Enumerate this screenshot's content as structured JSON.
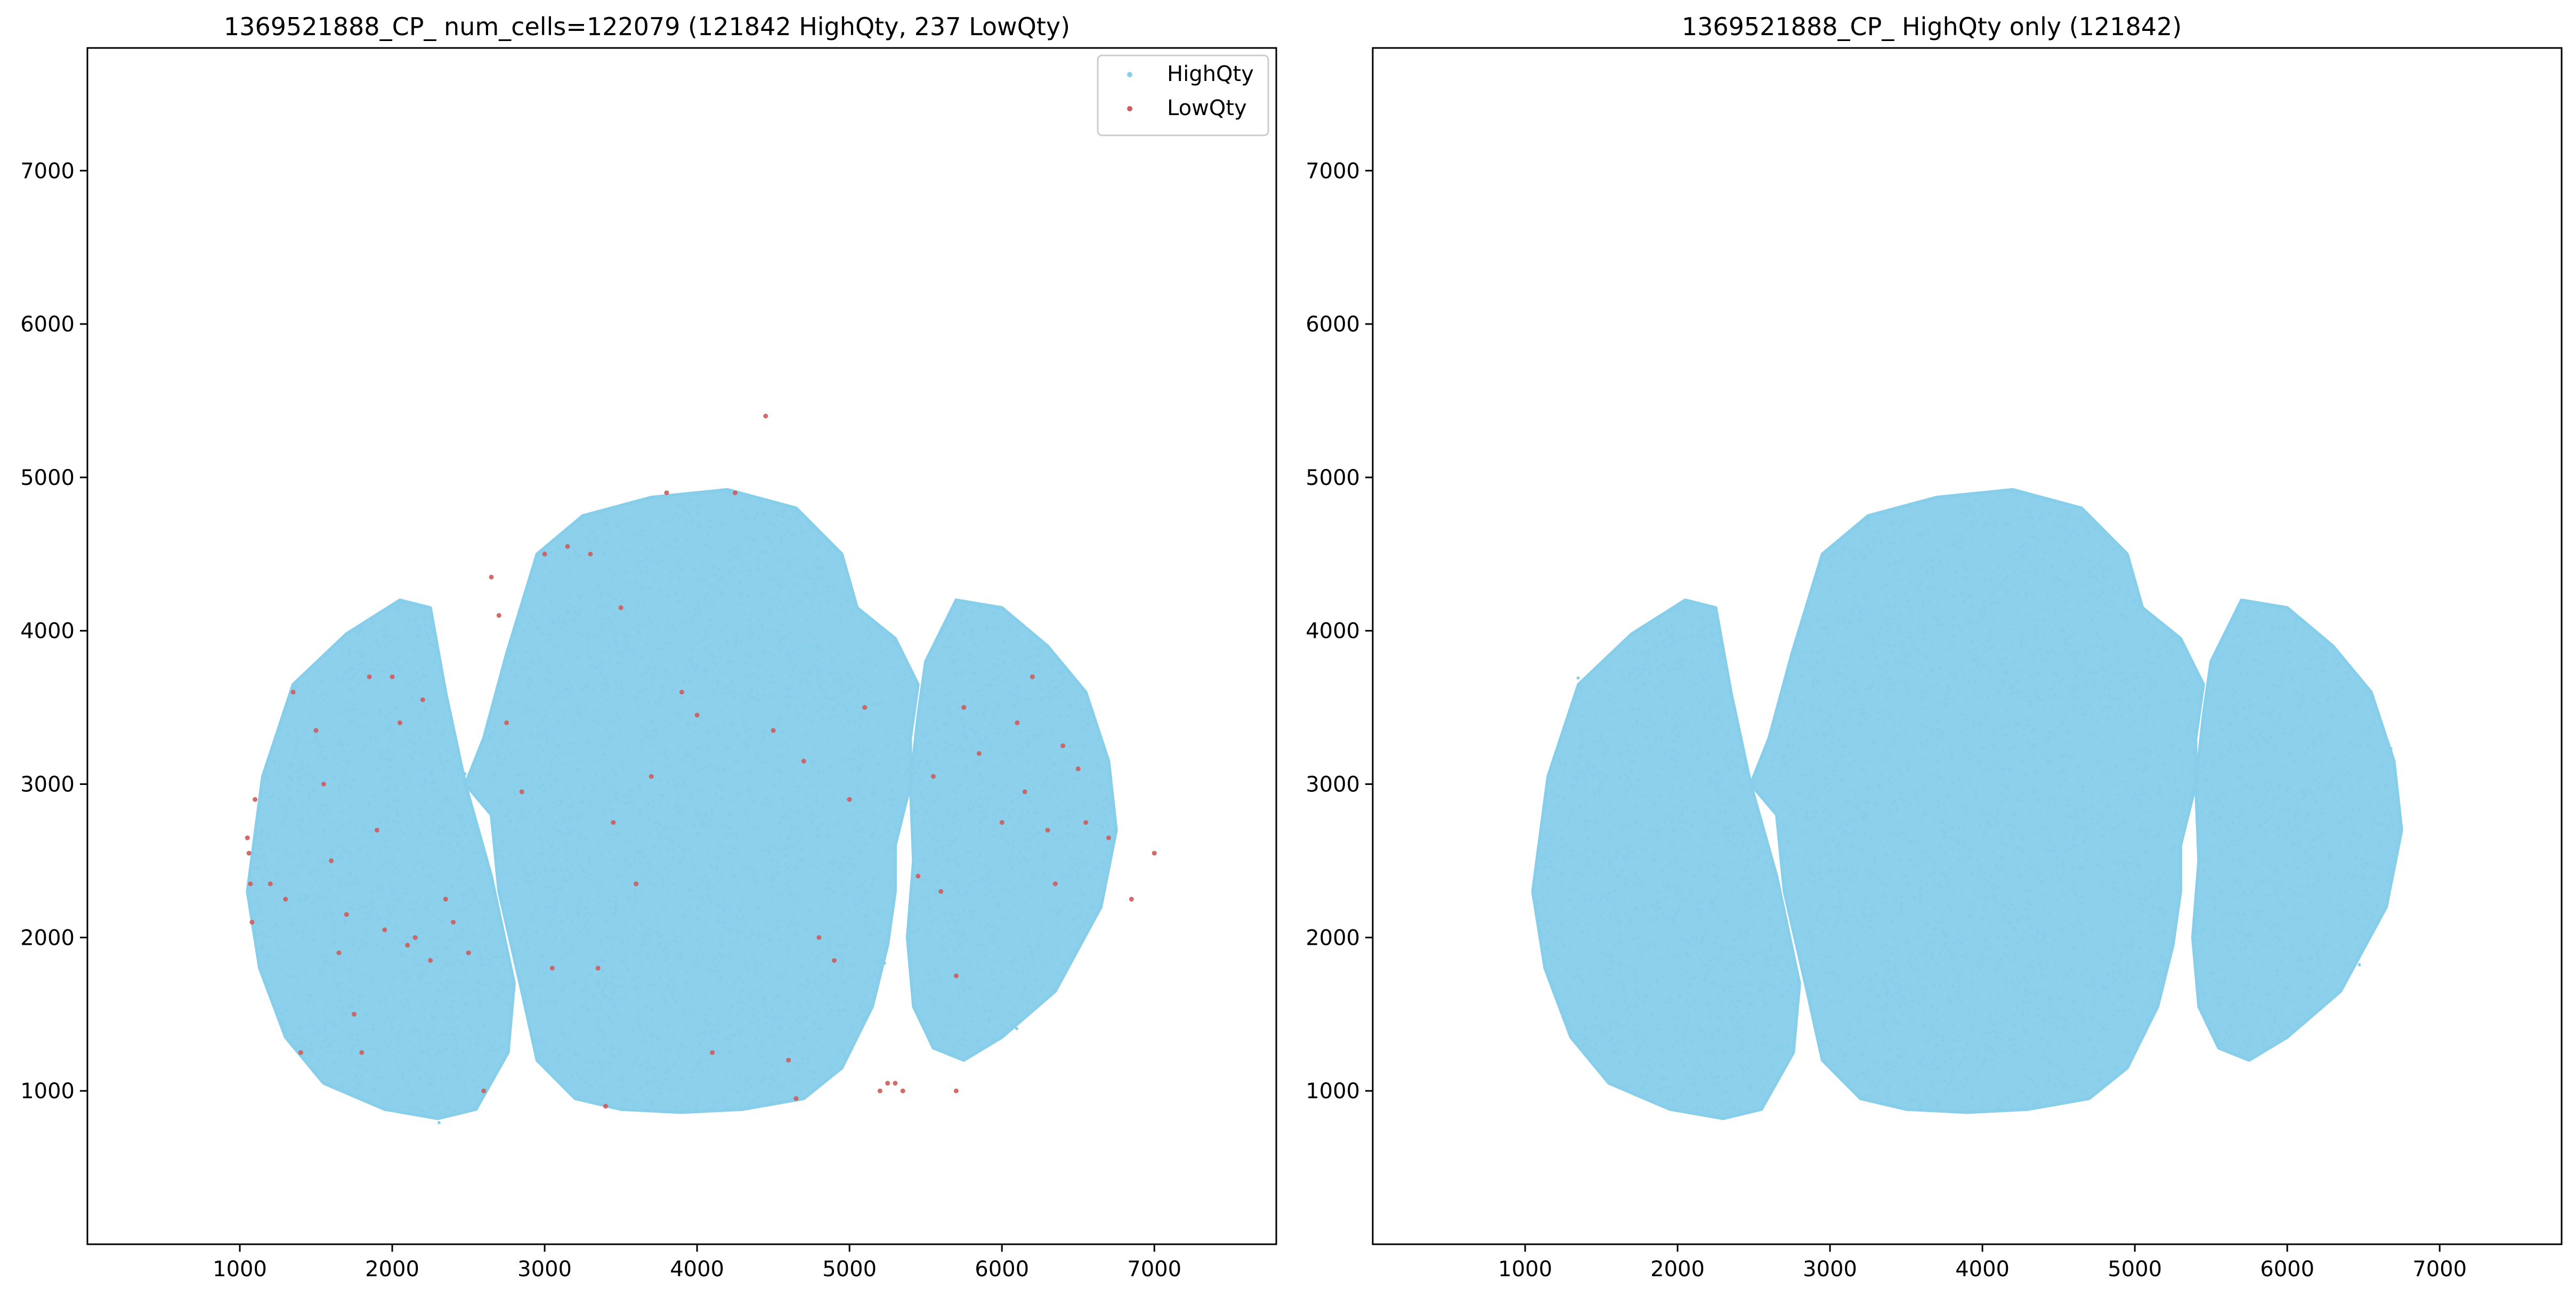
{
  "figure": {
    "background": "#ffffff",
    "colors": {
      "HighQty": "#87ceeb",
      "LowQty": "#cd5c5c"
    }
  },
  "chart_data": [
    {
      "type": "scatter",
      "title": "1369521888_CP_ num_cells=122079 (121842 HighQty, 237 LowQty)",
      "xlabel": "",
      "ylabel": "",
      "xlim": [
        0,
        7800
      ],
      "ylim": [
        0,
        7800
      ],
      "xticks": [
        "1000",
        "2000",
        "3000",
        "4000",
        "5000",
        "6000",
        "7000"
      ],
      "yticks": [
        "1000",
        "2000",
        "3000",
        "4000",
        "5000",
        "6000",
        "7000"
      ],
      "grid": false,
      "legend": {
        "position": "top-right",
        "entries": [
          "HighQty",
          "LowQty"
        ]
      },
      "series": [
        {
          "name": "HighQty",
          "color": "#87ceeb",
          "count": 121842,
          "shape": "dense tissue section with three lobes (left lobe, central lobe, right lobe)",
          "regions": {
            "left_lobe": [
              [
                1050,
                2300
              ],
              [
                1150,
                3050
              ],
              [
                1350,
                3650
              ],
              [
                1700,
                3980
              ],
              [
                2050,
                4200
              ],
              [
                2250,
                4150
              ],
              [
                2350,
                3600
              ],
              [
                2480,
                3000
              ],
              [
                2650,
                2400
              ],
              [
                2800,
                1700
              ],
              [
                2760,
                1250
              ],
              [
                2550,
                880
              ],
              [
                2300,
                820
              ],
              [
                1950,
                880
              ],
              [
                1550,
                1050
              ],
              [
                1300,
                1350
              ],
              [
                1130,
                1800
              ]
            ],
            "central_lobe": [
              [
                2600,
                3300
              ],
              [
                2750,
                3850
              ],
              [
                2950,
                4500
              ],
              [
                3250,
                4750
              ],
              [
                3700,
                4870
              ],
              [
                4200,
                4920
              ],
              [
                4650,
                4800
              ],
              [
                4950,
                4500
              ],
              [
                5050,
                4150
              ],
              [
                5300,
                3950
              ],
              [
                5450,
                3650
              ],
              [
                5400,
                3300
              ],
              [
                5400,
                3000
              ],
              [
                5300,
                2600
              ],
              [
                5300,
                2300
              ],
              [
                5250,
                1950
              ],
              [
                5150,
                1550
              ],
              [
                4950,
                1150
              ],
              [
                4700,
                950
              ],
              [
                4300,
                880
              ],
              [
                3900,
                860
              ],
              [
                3500,
                880
              ],
              [
                3200,
                950
              ],
              [
                2950,
                1200
              ],
              [
                2850,
                1650
              ],
              [
                2700,
                2300
              ],
              [
                2650,
                2800
              ],
              [
                2480,
                3000
              ]
            ],
            "right_lobe": [
              [
                5500,
                3800
              ],
              [
                5700,
                4200
              ],
              [
                6000,
                4150
              ],
              [
                6300,
                3900
              ],
              [
                6550,
                3600
              ],
              [
                6700,
                3150
              ],
              [
                6750,
                2700
              ],
              [
                6650,
                2200
              ],
              [
                6350,
                1650
              ],
              [
                6000,
                1350
              ],
              [
                5750,
                1200
              ],
              [
                5550,
                1280
              ],
              [
                5420,
                1550
              ],
              [
                5380,
                2000
              ],
              [
                5420,
                2500
              ],
              [
                5400,
                3000
              ],
              [
                5450,
                3450
              ]
            ]
          }
        },
        {
          "name": "LowQty",
          "color": "#cd5c5c",
          "count": 237,
          "points": [
            [
              1050,
              2650
            ],
            [
              1060,
              2550
            ],
            [
              1070,
              2350
            ],
            [
              1080,
              2100
            ],
            [
              1100,
              2900
            ],
            [
              1200,
              2350
            ],
            [
              1300,
              2250
            ],
            [
              1350,
              3600
            ],
            [
              1400,
              1250
            ],
            [
              1500,
              3350
            ],
            [
              1550,
              3000
            ],
            [
              1600,
              2500
            ],
            [
              1650,
              1900
            ],
            [
              1700,
              2150
            ],
            [
              1750,
              1500
            ],
            [
              1800,
              1250
            ],
            [
              1850,
              3700
            ],
            [
              1900,
              2700
            ],
            [
              1950,
              2050
            ],
            [
              2000,
              3700
            ],
            [
              2050,
              3400
            ],
            [
              2100,
              1950
            ],
            [
              2150,
              2000
            ],
            [
              2200,
              3550
            ],
            [
              2250,
              1850
            ],
            [
              2350,
              2250
            ],
            [
              2400,
              2100
            ],
            [
              2500,
              1900
            ],
            [
              2600,
              1000
            ],
            [
              2650,
              4350
            ],
            [
              2700,
              4100
            ],
            [
              2750,
              3400
            ],
            [
              2850,
              2950
            ],
            [
              3000,
              4500
            ],
            [
              3050,
              1800
            ],
            [
              3150,
              4550
            ],
            [
              3300,
              4500
            ],
            [
              3350,
              1800
            ],
            [
              3400,
              900
            ],
            [
              3450,
              2750
            ],
            [
              3500,
              4150
            ],
            [
              3600,
              2350
            ],
            [
              3700,
              3050
            ],
            [
              3800,
              4900
            ],
            [
              3900,
              3600
            ],
            [
              4000,
              3450
            ],
            [
              4100,
              1250
            ],
            [
              4250,
              4900
            ],
            [
              4450,
              5400
            ],
            [
              4500,
              3350
            ],
            [
              4600,
              1200
            ],
            [
              4650,
              950
            ],
            [
              4700,
              3150
            ],
            [
              4800,
              2000
            ],
            [
              4900,
              1850
            ],
            [
              5000,
              2900
            ],
            [
              5100,
              3500
            ],
            [
              5200,
              1000
            ],
            [
              5250,
              1050
            ],
            [
              5300,
              1050
            ],
            [
              5350,
              1000
            ],
            [
              5450,
              2400
            ],
            [
              5550,
              3050
            ],
            [
              5600,
              2300
            ],
            [
              5700,
              1750
            ],
            [
              5750,
              3500
            ],
            [
              5850,
              3200
            ],
            [
              6000,
              2750
            ],
            [
              6100,
              3400
            ],
            [
              6150,
              2950
            ],
            [
              6200,
              3700
            ],
            [
              6300,
              2700
            ],
            [
              6350,
              2350
            ],
            [
              6400,
              3250
            ],
            [
              6500,
              3100
            ],
            [
              6550,
              2750
            ],
            [
              6700,
              2650
            ],
            [
              6850,
              2250
            ],
            [
              7000,
              2550
            ],
            [
              5700,
              1000
            ]
          ]
        }
      ]
    },
    {
      "type": "scatter",
      "title": "1369521888_CP_ HighQty only (121842)",
      "xlabel": "",
      "ylabel": "",
      "xlim": [
        0,
        7800
      ],
      "ylim": [
        0,
        7800
      ],
      "xticks": [
        "1000",
        "2000",
        "3000",
        "4000",
        "5000",
        "6000",
        "7000"
      ],
      "yticks": [
        "1000",
        "2000",
        "3000",
        "4000",
        "5000",
        "6000",
        "7000"
      ],
      "grid": false,
      "legend": null,
      "series": [
        {
          "name": "HighQty",
          "color": "#87ceeb",
          "count": 121842,
          "same_shape_as_left_panel": true
        }
      ]
    }
  ]
}
